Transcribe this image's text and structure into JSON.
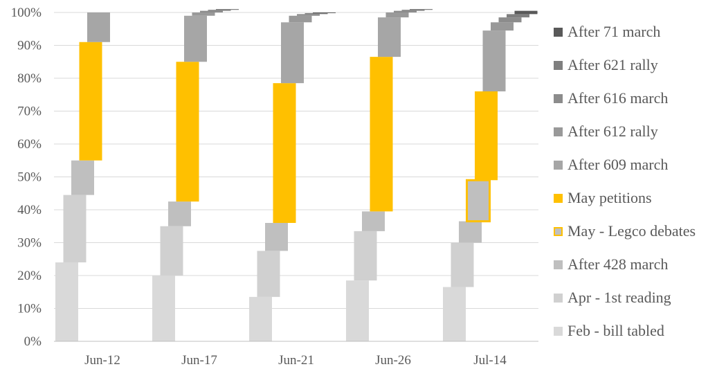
{
  "chart_data": {
    "type": "bar",
    "stacking": "waterfall-100%",
    "categories": [
      "Jun-12",
      "Jun-17",
      "Jun-21",
      "Jun-26",
      "Jul-14"
    ],
    "ylim": [
      0,
      100
    ],
    "yticks": [
      "0%",
      "10%",
      "20%",
      "30%",
      "40%",
      "50%",
      "60%",
      "70%",
      "80%",
      "90%",
      "100%"
    ],
    "grid": true,
    "legend_position": "right",
    "series": [
      {
        "name": "Feb - bill tabled",
        "color": "#d9d9d9",
        "values": [
          24,
          20,
          13.5,
          18.5,
          16.5
        ]
      },
      {
        "name": "Apr - 1st reading",
        "color": "#d0d0d0",
        "values": [
          20.5,
          15,
          14,
          15,
          13.5
        ]
      },
      {
        "name": "After 428 march",
        "color": "#bfbfbf",
        "values": [
          10.5,
          7.5,
          8.5,
          6,
          6.5
        ]
      },
      {
        "name": "May - Legco debates",
        "color": "#bfbfbf",
        "border": "#ffc000",
        "values": [
          0,
          0,
          0,
          0,
          12.5
        ]
      },
      {
        "name": "May petitions",
        "color": "#ffc000",
        "values": [
          36,
          42.5,
          42.5,
          47,
          27
        ]
      },
      {
        "name": "After 609 march",
        "color": "#a6a6a6",
        "values": [
          9,
          14,
          18.5,
          12,
          18.5
        ]
      },
      {
        "name": "After 612 rally",
        "color": "#999999",
        "values": [
          0,
          1,
          2,
          1.5,
          2.5
        ]
      },
      {
        "name": "After 616 march",
        "color": "#8c8c8c",
        "values": [
          0,
          0.5,
          0.5,
          0.5,
          1.5
        ]
      },
      {
        "name": "After 621 rally",
        "color": "#7f7f7f",
        "values": [
          0,
          0.3,
          0.3,
          0.3,
          1
        ]
      },
      {
        "name": "After 71 march",
        "color": "#595959",
        "values": [
          0,
          0.2,
          0.2,
          0.2,
          1
        ]
      }
    ],
    "colors": {
      "gridline": "#d9d9d9",
      "axis": "#bfbfbf",
      "text": "#595959"
    }
  },
  "legend": {
    "items": [
      {
        "label": "After 71 march",
        "color": "#595959"
      },
      {
        "label": "After 621 rally",
        "color": "#7f7f7f"
      },
      {
        "label": "After 616 march",
        "color": "#8c8c8c"
      },
      {
        "label": "After 612 rally",
        "color": "#999999"
      },
      {
        "label": "After 609 march",
        "color": "#a6a6a6"
      },
      {
        "label": "May petitions",
        "color": "#ffc000"
      },
      {
        "label": "May - Legco debates",
        "color": "#bfbfbf",
        "border": "#ffc000"
      },
      {
        "label": "After 428 march",
        "color": "#bfbfbf"
      },
      {
        "label": "Apr - 1st reading",
        "color": "#d0d0d0"
      },
      {
        "label": "Feb - bill tabled",
        "color": "#d9d9d9"
      }
    ]
  }
}
